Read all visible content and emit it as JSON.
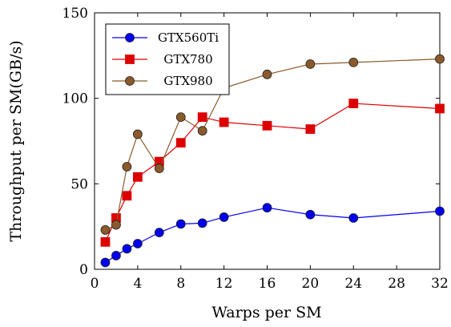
{
  "chart_data": {
    "type": "line",
    "xlabel": "Warps per SM",
    "ylabel": "Throughput per SM(GB/s)",
    "xlim": [
      0,
      32
    ],
    "ylim": [
      0,
      150
    ],
    "xticks": [
      0,
      4,
      8,
      12,
      16,
      20,
      24,
      28,
      32
    ],
    "yticks": [
      0,
      50,
      100,
      150
    ],
    "grid": false,
    "legend_position": "top-left",
    "series": [
      {
        "name": "GTX560Ti",
        "color": "#0000ee",
        "marker": "circle",
        "x": [
          1,
          2,
          3,
          4,
          6,
          8,
          10,
          12,
          16,
          20,
          24,
          32
        ],
        "y": [
          4,
          8,
          12,
          15,
          21.5,
          26.5,
          27,
          30.5,
          36,
          32,
          30,
          34
        ]
      },
      {
        "name": "GTX780",
        "color": "#dd0000",
        "marker": "square",
        "x": [
          1,
          2,
          3,
          4,
          6,
          8,
          10,
          12,
          16,
          20,
          24,
          32
        ],
        "y": [
          16,
          30,
          43,
          54,
          63,
          74,
          89,
          86,
          84,
          82,
          97,
          94
        ]
      },
      {
        "name": "GTX980",
        "color": "#8b5a2b",
        "marker": "circle",
        "x": [
          1,
          2,
          3,
          4,
          6,
          8,
          10,
          12,
          16,
          20,
          24,
          32
        ],
        "y": [
          23,
          26,
          60,
          79,
          59,
          89,
          81,
          106,
          114,
          120,
          121,
          123
        ]
      }
    ]
  }
}
